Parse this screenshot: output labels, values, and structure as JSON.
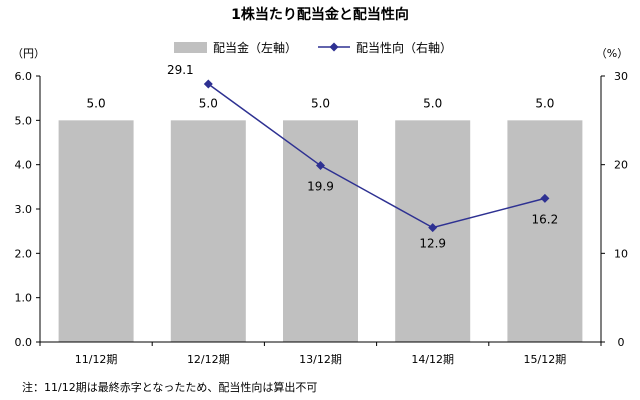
{
  "chart_data": {
    "type": "bar",
    "title": "1株当たり配当金と配当性向",
    "categories": [
      "11/12期",
      "12/12期",
      "13/12期",
      "14/12期",
      "15/12期"
    ],
    "series": [
      {
        "name": "配当金（左軸）",
        "type": "bar",
        "axis": "left",
        "values": [
          5.0,
          5.0,
          5.0,
          5.0,
          5.0
        ],
        "labels": [
          "5.0",
          "5.0",
          "5.0",
          "5.0",
          "5.0"
        ],
        "color": "#c0c0c0"
      },
      {
        "name": "配当性向（右軸）",
        "type": "line",
        "axis": "right",
        "values": [
          null,
          29.1,
          19.9,
          12.9,
          16.2
        ],
        "labels": [
          "",
          "29.1",
          "19.9",
          "12.9",
          "16.2"
        ],
        "color": "#2e3192"
      }
    ],
    "left_axis": {
      "unit": "（円）",
      "ylim": [
        0,
        6
      ],
      "ticks": [
        "0.0",
        "1.0",
        "2.0",
        "3.0",
        "4.0",
        "5.0",
        "6.0"
      ]
    },
    "right_axis": {
      "unit": "（%）",
      "ylim": [
        0,
        30
      ],
      "ticks": [
        "0",
        "10",
        "20",
        "30"
      ]
    },
    "legend_position": "top",
    "grid": false
  },
  "note": "注：11/12期は最終赤字となったため、配当性向は算出不可"
}
